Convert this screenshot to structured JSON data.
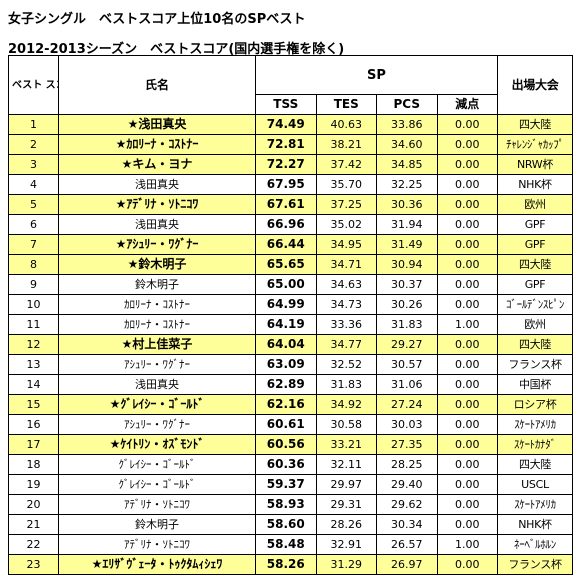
{
  "title1": "女子シングル　ベストスコア上位10名のSPベスト",
  "title2": "2012-2013シーズン　ベストスコア(国内選手権を除く)",
  "headers": {
    "rank": "ベスト スコア順",
    "name": "氏名",
    "sp": "SP",
    "tss": "TSS",
    "tes": "TES",
    "pcs": "PCS",
    "ded": "減点",
    "event": "出場大会"
  },
  "rows": [
    {
      "rank": "1",
      "name": "★浅田真央",
      "tss": "74.49",
      "tes": "40.63",
      "pcs": "33.86",
      "ded": "0.00",
      "event": "四大陸",
      "highlight": true
    },
    {
      "rank": "2",
      "name": "★ｶﾛﾘｰﾅ・ｺｽﾄﾅｰ",
      "tss": "72.81",
      "tes": "38.21",
      "pcs": "34.60",
      "ded": "0.00",
      "event": "ﾁｬﾚﾝｼﾞｬｶｯﾌﾟ",
      "highlight": true
    },
    {
      "rank": "3",
      "name": "★キム・ヨナ",
      "tss": "72.27",
      "tes": "37.42",
      "pcs": "34.85",
      "ded": "0.00",
      "event": "NRW杯",
      "highlight": true
    },
    {
      "rank": "4",
      "name": "浅田真央",
      "tss": "67.95",
      "tes": "35.70",
      "pcs": "32.25",
      "ded": "0.00",
      "event": "NHK杯",
      "highlight": false
    },
    {
      "rank": "5",
      "name": "★ｱﾃﾞﾘﾅ・ｿﾄﾆｺﾜ",
      "tss": "67.61",
      "tes": "37.25",
      "pcs": "30.36",
      "ded": "0.00",
      "event": "欧州",
      "highlight": true
    },
    {
      "rank": "6",
      "name": "浅田真央",
      "tss": "66.96",
      "tes": "35.02",
      "pcs": "31.94",
      "ded": "0.00",
      "event": "GPF",
      "highlight": false
    },
    {
      "rank": "7",
      "name": "★ｱｼｭﾘｰ・ﾜｸﾞﾅｰ",
      "tss": "66.44",
      "tes": "34.95",
      "pcs": "31.49",
      "ded": "0.00",
      "event": "GPF",
      "highlight": true
    },
    {
      "rank": "8",
      "name": "★鈴木明子",
      "tss": "65.65",
      "tes": "34.71",
      "pcs": "30.94",
      "ded": "0.00",
      "event": "四大陸",
      "highlight": true
    },
    {
      "rank": "9",
      "name": "鈴木明子",
      "tss": "65.00",
      "tes": "34.63",
      "pcs": "30.37",
      "ded": "0.00",
      "event": "GPF",
      "highlight": false
    },
    {
      "rank": "10",
      "name": "ｶﾛﾘｰﾅ・ｺｽﾄﾅｰ",
      "tss": "64.99",
      "tes": "34.73",
      "pcs": "30.26",
      "ded": "0.00",
      "event": "ｺﾞｰﾙﾃﾞﾝｽﾋﾟﾝ",
      "highlight": false
    },
    {
      "rank": "11",
      "name": "ｶﾛﾘｰﾅ・ｺｽﾄﾅｰ",
      "tss": "64.19",
      "tes": "33.36",
      "pcs": "31.83",
      "ded": "1.00",
      "event": "欧州",
      "highlight": false
    },
    {
      "rank": "12",
      "name": "★村上佳菜子",
      "tss": "64.04",
      "tes": "34.77",
      "pcs": "29.27",
      "ded": "0.00",
      "event": "四大陸",
      "highlight": true
    },
    {
      "rank": "13",
      "name": "ｱｼｭﾘｰ・ﾜｸﾞﾅｰ",
      "tss": "63.09",
      "tes": "32.52",
      "pcs": "30.57",
      "ded": "0.00",
      "event": "フランス杯",
      "highlight": false
    },
    {
      "rank": "14",
      "name": "浅田真央",
      "tss": "62.89",
      "tes": "31.83",
      "pcs": "31.06",
      "ded": "0.00",
      "event": "中国杯",
      "highlight": false
    },
    {
      "rank": "15",
      "name": "★ｸﾞﾚｲｼｰ・ｺﾞｰﾙﾄﾞ",
      "tss": "62.16",
      "tes": "34.92",
      "pcs": "27.24",
      "ded": "0.00",
      "event": "ロシア杯",
      "highlight": true
    },
    {
      "rank": "16",
      "name": "ｱｼｭﾘｰ・ﾜｸﾞﾅｰ",
      "tss": "60.61",
      "tes": "30.58",
      "pcs": "30.03",
      "ded": "0.00",
      "event": "ｽｹｰﾄｱﾒﾘｶ",
      "highlight": false
    },
    {
      "rank": "17",
      "name": "★ｹｲﾄﾘﾝ・ｵｽﾞﾓﾝﾄﾞ",
      "tss": "60.56",
      "tes": "33.21",
      "pcs": "27.35",
      "ded": "0.00",
      "event": "ｽｹｰﾄｶﾅﾀﾞ",
      "highlight": true
    },
    {
      "rank": "18",
      "name": "ｸﾞﾚｲｼｰ・ｺﾞｰﾙﾄﾞ",
      "tss": "60.36",
      "tes": "32.11",
      "pcs": "28.25",
      "ded": "0.00",
      "event": "四大陸",
      "highlight": false
    },
    {
      "rank": "19",
      "name": "ｸﾞﾚｲｼｰ・ｺﾞｰﾙﾄﾞ",
      "tss": "59.37",
      "tes": "29.97",
      "pcs": "29.40",
      "ded": "0.00",
      "event": "USCL",
      "highlight": false
    },
    {
      "rank": "20",
      "name": "ｱﾃﾞﾘﾅ・ｿﾄﾆｺﾜ",
      "tss": "58.93",
      "tes": "29.31",
      "pcs": "29.62",
      "ded": "0.00",
      "event": "ｽｹｰﾄｱﾒﾘｶ",
      "highlight": false
    },
    {
      "rank": "21",
      "name": "鈴木明子",
      "tss": "58.60",
      "tes": "28.26",
      "pcs": "30.34",
      "ded": "0.00",
      "event": "NHK杯",
      "highlight": false
    },
    {
      "rank": "22",
      "name": "ｱﾃﾞﾘﾅ・ｿﾄﾆｺﾜ",
      "tss": "58.48",
      "tes": "32.91",
      "pcs": "26.57",
      "ded": "1.00",
      "event": "ﾈｰﾍﾞﾙﾎﾙﾝ",
      "highlight": false
    },
    {
      "rank": "23",
      "name": "★ｴﾘｻﾞｳﾞｪｰﾀ・ﾄｩｸﾀﾑｨｼｪﾜ",
      "tss": "58.26",
      "tes": "31.29",
      "pcs": "26.97",
      "ded": "0.00",
      "event": "フランス杯",
      "highlight": true
    }
  ]
}
